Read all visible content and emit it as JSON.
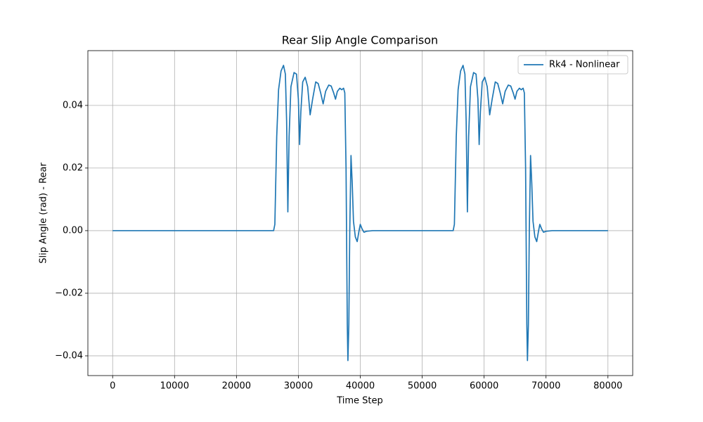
{
  "chart_data": {
    "type": "line",
    "title": "Rear Slip Angle Comparison",
    "x_label": "Time Step",
    "y_label": "Slip Angle (rad) - Rear",
    "x": [
      0,
      26000,
      26200,
      26500,
      26800,
      27200,
      27600,
      27900,
      28100,
      28300,
      28500,
      28800,
      29300,
      29700,
      30000,
      30200,
      30400,
      30700,
      31100,
      31500,
      31900,
      32300,
      32800,
      33200,
      33600,
      34000,
      34400,
      34900,
      35300,
      35700,
      36000,
      36300,
      36700,
      37000,
      37300,
      37500,
      37700,
      37900,
      38000,
      38150,
      38300,
      38500,
      38700,
      38900,
      39200,
      39500,
      39800,
      40000,
      40300,
      40600,
      41000,
      42000,
      55000,
      55200,
      55500,
      55800,
      56200,
      56600,
      56900,
      57100,
      57300,
      57500,
      57800,
      58300,
      58700,
      59000,
      59200,
      59400,
      59700,
      60100,
      60500,
      60900,
      61300,
      61800,
      62200,
      62600,
      63000,
      63400,
      63900,
      64300,
      64700,
      65000,
      65300,
      65700,
      66000,
      66300,
      66500,
      66700,
      66900,
      67000,
      67150,
      67300,
      67500,
      67700,
      67900,
      68200,
      68500,
      68800,
      69000,
      69300,
      69600,
      70000,
      71000,
      80000
    ],
    "series": [
      {
        "name": "Rk4 - Nonlinear",
        "color": "#1f77b4",
        "values": [
          0,
          0,
          0.002,
          0.03,
          0.045,
          0.051,
          0.0528,
          0.05,
          0.035,
          0.006,
          0.03,
          0.046,
          0.0505,
          0.05,
          0.042,
          0.0275,
          0.038,
          0.0475,
          0.049,
          0.046,
          0.037,
          0.042,
          0.0475,
          0.047,
          0.044,
          0.0405,
          0.0445,
          0.0465,
          0.0462,
          0.044,
          0.042,
          0.0445,
          0.0455,
          0.045,
          0.0455,
          0.044,
          0.02,
          -0.03,
          -0.0415,
          -0.03,
          0,
          0.024,
          0.015,
          0.003,
          -0.002,
          -0.0035,
          0,
          0.002,
          0.0005,
          -0.0005,
          -0.0002,
          0,
          0,
          0.002,
          0.03,
          0.045,
          0.051,
          0.0528,
          0.05,
          0.035,
          0.006,
          0.03,
          0.046,
          0.0505,
          0.05,
          0.042,
          0.0275,
          0.038,
          0.0475,
          0.049,
          0.046,
          0.037,
          0.042,
          0.0475,
          0.047,
          0.044,
          0.0405,
          0.0445,
          0.0465,
          0.0462,
          0.044,
          0.042,
          0.0445,
          0.0455,
          0.045,
          0.0455,
          0.044,
          0.02,
          -0.03,
          -0.0415,
          -0.03,
          0,
          0.024,
          0.015,
          0.003,
          -0.002,
          -0.0035,
          0,
          0.002,
          0.0005,
          -0.0005,
          -0.0002,
          0,
          0
        ]
      }
    ],
    "xlim": [
      -4000,
      84000
    ],
    "ylim": [
      -0.0463,
      0.0575
    ],
    "xticks": [
      0,
      10000,
      20000,
      30000,
      40000,
      50000,
      60000,
      70000,
      80000
    ],
    "yticks": [
      {
        "value": -0.04,
        "label": "−0.04"
      },
      {
        "value": -0.02,
        "label": "−0.02"
      },
      {
        "value": 0,
        "label": "0.00"
      },
      0.02,
      0.04
    ],
    "grid": true,
    "legend": "upper right"
  }
}
